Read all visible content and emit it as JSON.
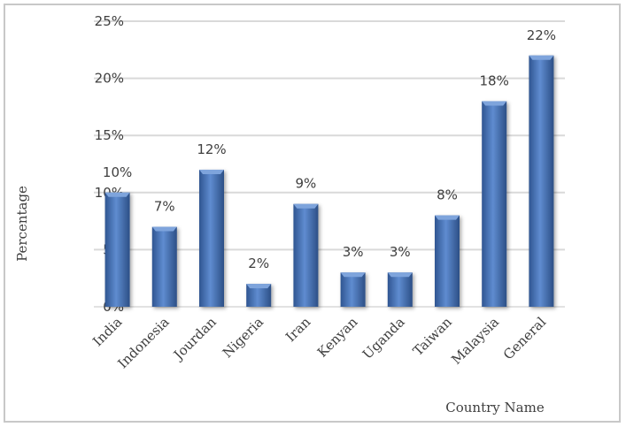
{
  "chart_data": {
    "type": "bar",
    "categories": [
      "India",
      "Indonesia",
      "Jourdan",
      "Nigeria",
      "Iran",
      "Kenyan",
      "Uganda",
      "Taiwan",
      "Malaysia",
      "General"
    ],
    "values": [
      10,
      7,
      12,
      2,
      9,
      3,
      3,
      8,
      18,
      22
    ],
    "data_labels": [
      "10%",
      "7%",
      "12%",
      "2%",
      "9%",
      "3%",
      "3%",
      "8%",
      "18%",
      "22%"
    ],
    "ylim": [
      0,
      25
    ],
    "yticks": [
      "0%",
      "5%",
      "10%",
      "15%",
      "20%",
      "25%"
    ],
    "xlabel": "Country Name",
    "ylabel": "Percentage",
    "grid": true,
    "legend": "none",
    "colors": {
      "bar": "#4a74b4",
      "bar_dark": "#2c4f86",
      "bar_light": "#7ea4dc",
      "grid": "#d9d9d9"
    }
  }
}
